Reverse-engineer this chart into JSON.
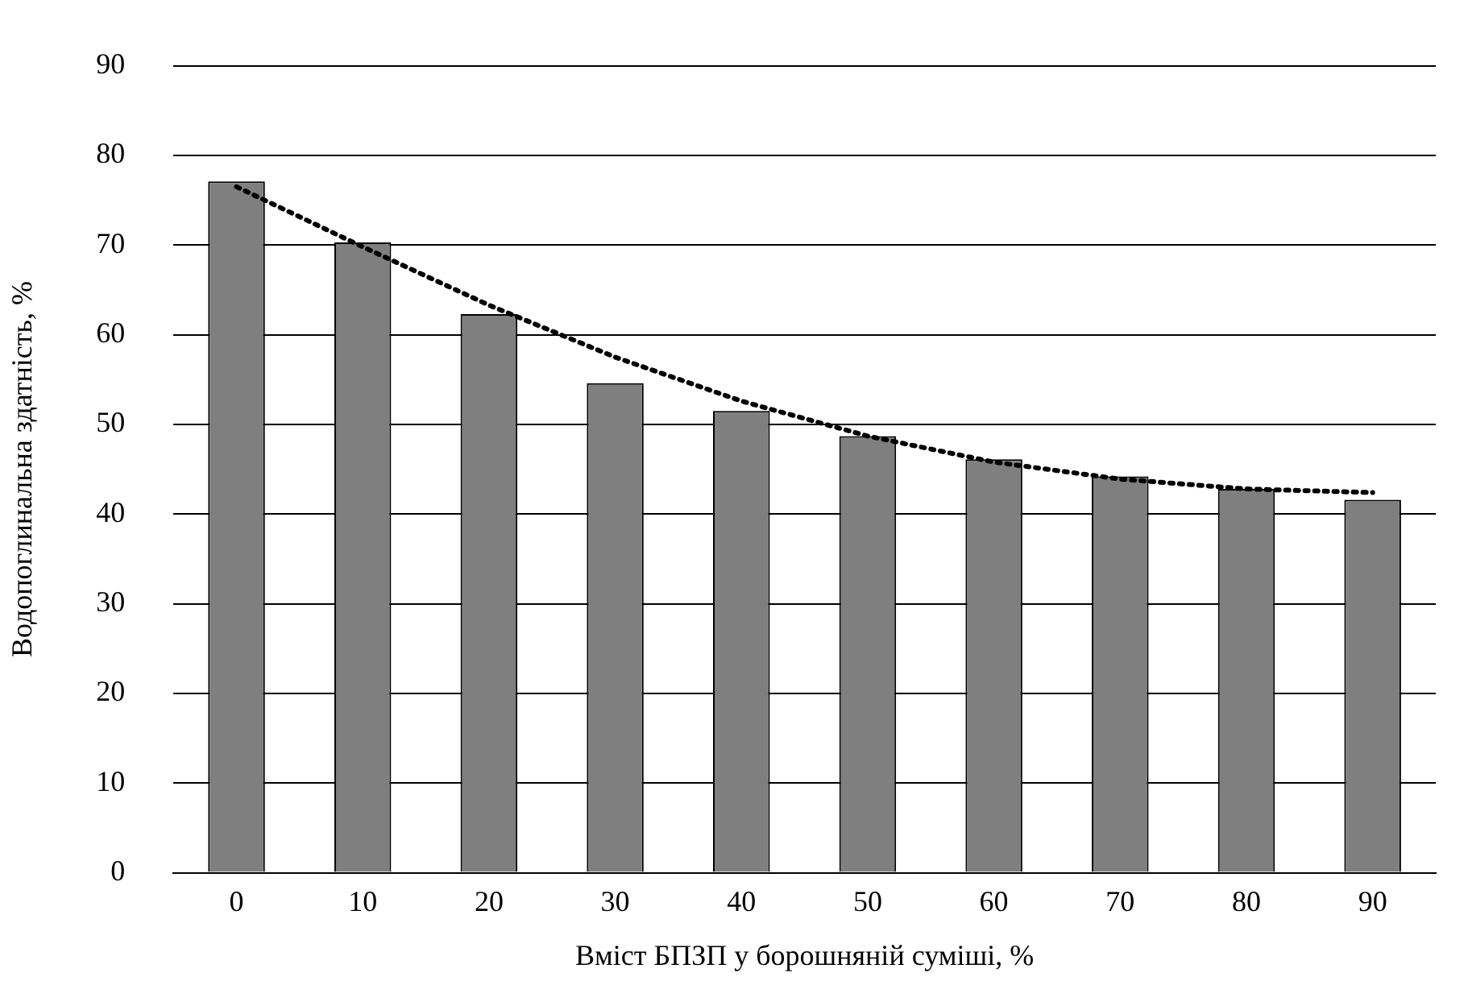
{
  "chart_data": {
    "type": "bar",
    "xlabel": "Вміст БПЗП у борошняній суміші, %",
    "ylabel": "Водопоглинальна здатність, %",
    "categories": [
      "0",
      "10",
      "20",
      "30",
      "40",
      "50",
      "60",
      "70",
      "80",
      "90"
    ],
    "series": [
      {
        "color": "#7f7f7f",
        "values": [
          77.1,
          70.3,
          62.3,
          54.6,
          51.5,
          48.7,
          46.1,
          44.2,
          42.8,
          41.6
        ]
      },
      {
        "type": "line",
        "color": "#000000",
        "line_style": "dotted",
        "marker": "none",
        "x": [
          "0",
          "10",
          "20",
          "30",
          "40",
          "50",
          "60",
          "70",
          "80",
          "90"
        ],
        "values": [
          76.5,
          69.8,
          63.3,
          57.5,
          52.6,
          48.7,
          45.8,
          43.9,
          42.8,
          42.4
        ]
      }
    ],
    "ylim": [
      0,
      90
    ],
    "yticks": [
      0,
      10,
      20,
      30,
      40,
      50,
      60,
      70,
      80,
      90
    ],
    "grid": "y",
    "legend": false
  }
}
